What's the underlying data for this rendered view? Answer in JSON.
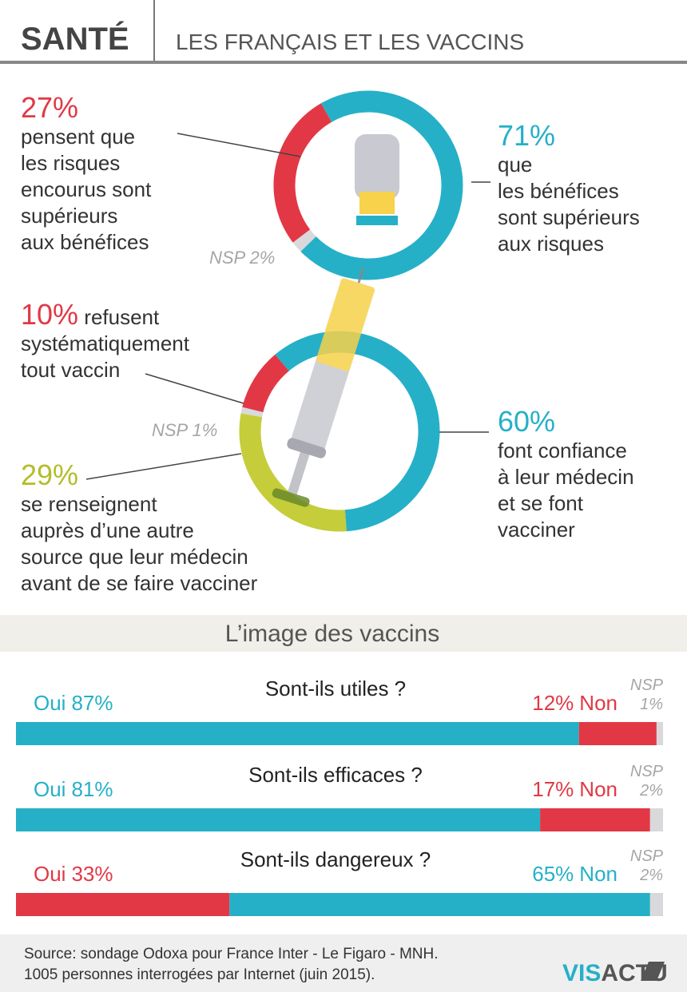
{
  "header": {
    "title": "SANTÉ",
    "subtitle": "LES FRANÇAIS ET LES VACCINS"
  },
  "chart_data": [
    {
      "type": "pie",
      "donut": true,
      "categories": [
        "que\nles bénéfices\nsont supérieurs\naux risques",
        "NSP",
        "pensent que\nles risques\nencourus sont\nsupérieurs\naux bénéfices"
      ],
      "values": [
        71,
        2,
        27
      ],
      "value_labels": [
        "71%",
        "2%",
        "27%"
      ],
      "colors": [
        "#25b0c8",
        "#d9d9db",
        "#e23845"
      ]
    },
    {
      "type": "pie",
      "donut": true,
      "categories": [
        "font confiance\nà leur médecin\net se font\nvacciner",
        "se renseignent\nauprès d’une autre\nsource que leur médecin\navant de se faire vacciner",
        "NSP",
        "refusent\nsystématiquement\ntout vaccin"
      ],
      "values": [
        60,
        29,
        1,
        10
      ],
      "value_labels": [
        "60%",
        "29%",
        "1%",
        "10%"
      ],
      "colors": [
        "#25b0c8",
        "#c5cd3a",
        "#d9d9db",
        "#e23845"
      ]
    },
    {
      "type": "bar",
      "stacked": true,
      "orientation": "horizontal",
      "title": "Sont-ils utiles ?",
      "xlim": [
        0,
        100
      ],
      "series": [
        {
          "name": "Oui",
          "color": "#25b0c8",
          "values": [
            87
          ],
          "value_labels": [
            "87%"
          ]
        },
        {
          "name": "Non",
          "color": "#e23845",
          "values": [
            12
          ],
          "value_labels": [
            "12%"
          ]
        },
        {
          "name": "NSP",
          "color": "#d9d9db",
          "values": [
            1
          ],
          "value_labels": [
            "1%"
          ]
        }
      ]
    },
    {
      "type": "bar",
      "stacked": true,
      "orientation": "horizontal",
      "title": "Sont-ils efficaces ?",
      "xlim": [
        0,
        100
      ],
      "series": [
        {
          "name": "Oui",
          "color": "#25b0c8",
          "values": [
            81
          ],
          "value_labels": [
            "81%"
          ]
        },
        {
          "name": "Non",
          "color": "#e23845",
          "values": [
            17
          ],
          "value_labels": [
            "17%"
          ]
        },
        {
          "name": "NSP",
          "color": "#d9d9db",
          "values": [
            2
          ],
          "value_labels": [
            "2%"
          ]
        }
      ]
    },
    {
      "type": "bar",
      "stacked": true,
      "orientation": "horizontal",
      "title": "Sont-ils dangereux ?",
      "xlim": [
        0,
        100
      ],
      "series": [
        {
          "name": "Oui",
          "color": "#e23845",
          "values": [
            33
          ],
          "value_labels": [
            "33%"
          ]
        },
        {
          "name": "Non",
          "color": "#25b0c8",
          "values": [
            65
          ],
          "value_labels": [
            "65%"
          ]
        },
        {
          "name": "NSP",
          "color": "#d9d9db",
          "values": [
            2
          ],
          "value_labels": [
            "2%"
          ]
        }
      ]
    }
  ],
  "section_title": "L’image des vaccins",
  "footer": {
    "source": [
      "Source: sondage Odoxa pour France Inter - Le Figaro - MNH.",
      "1005 personnes interrogées par Internet (juin 2015)."
    ],
    "logo": [
      "VIS",
      "ACTU"
    ]
  }
}
